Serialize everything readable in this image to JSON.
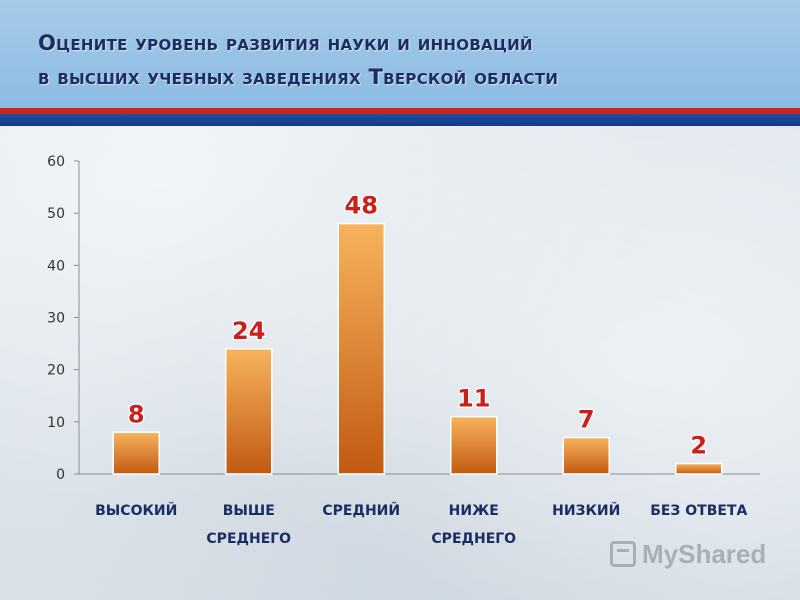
{
  "header": {
    "title_line1": "Оцените уровень развития науки и инноваций",
    "title_line2": "в высших учебных заведениях Тверской области"
  },
  "watermark": {
    "text": "MyShared",
    "icon": "myshared-logo-icon"
  },
  "colors": {
    "bar_top": "#f7b35c",
    "bar_bottom": "#c25a12",
    "value_label": "#c8201a",
    "category_label": "#1d2c63",
    "header_bg": "#9cc4e6",
    "stripe_red": "#c8261c",
    "stripe_blue": "#1f4fa6"
  },
  "chart_data": {
    "type": "bar",
    "title": "",
    "xlabel": "",
    "ylabel": "",
    "ylim": [
      0,
      60
    ],
    "yticks": [
      0,
      10,
      20,
      30,
      40,
      50,
      60
    ],
    "grid": false,
    "categories": [
      [
        "ВЫСОКИЙ"
      ],
      [
        "ВЫШЕ",
        "СРЕДНЕГО"
      ],
      [
        "СРЕДНИЙ"
      ],
      [
        "НИЖЕ",
        "СРЕДНЕГО"
      ],
      [
        "НИЗКИЙ"
      ],
      [
        "БЕЗ ОТВЕТА"
      ]
    ],
    "values": [
      8,
      24,
      48,
      11,
      7,
      2
    ],
    "data_labels": [
      "8",
      "24",
      "48",
      "11",
      "7",
      "2"
    ]
  }
}
